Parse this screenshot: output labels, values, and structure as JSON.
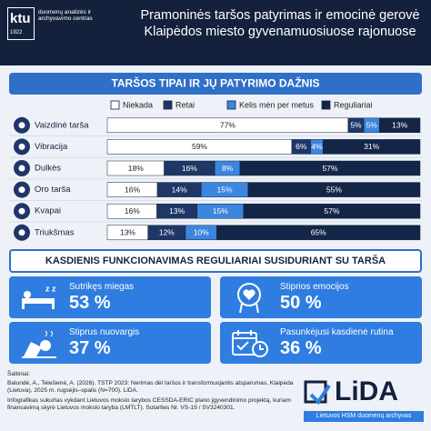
{
  "header": {
    "logo_text": "ktu",
    "logo_year": "1922",
    "logo_subtitle": "duomenų analizės ir archyvavimo centras",
    "title": "Pramoninės taršos patyrimas ir emocinė gerovė Klaipėdos miesto gyvenamuosiuose rajonuose"
  },
  "chart_data": {
    "type": "bar",
    "stacked": true,
    "orientation": "horizontal",
    "title": "TARŠOS TIPAI IR JŲ PATYRIMO DAŽNIS",
    "categories": [
      "Vaizdinė tarša",
      "Vibracija",
      "Dulkės",
      "Oro tarša",
      "Kvapai",
      "Triukšmas"
    ],
    "series": [
      {
        "name": "Niekada",
        "color": "#ffffff",
        "values": [
          77,
          59,
          18,
          16,
          16,
          13
        ],
        "value_labels": [
          "77%",
          "59%",
          "18%",
          "16%",
          "16%",
          "13%"
        ]
      },
      {
        "name": "Retai",
        "color": "#1f3766",
        "values": [
          5,
          6,
          16,
          14,
          13,
          12
        ],
        "value_labels": [
          "5%",
          "6%",
          "16%",
          "14%",
          "13%",
          "12%"
        ]
      },
      {
        "name": "Kelis mėn per metus",
        "color": "#3b86de",
        "values": [
          5,
          4,
          8,
          15,
          15,
          10
        ],
        "value_labels": [
          "5%",
          "4%",
          "8%",
          "15%",
          "15%",
          "10%"
        ]
      },
      {
        "name": "Reguliariai",
        "color": "#142647",
        "values": [
          13,
          31,
          57,
          55,
          57,
          65
        ],
        "value_labels": [
          "13%",
          "31%",
          "57%",
          "55%",
          "57%",
          "65%"
        ]
      }
    ],
    "legend": "top"
  },
  "section2": {
    "title": "KASDIENIS FUNKCIONAVIMAS REGULIARIAI SUSIDURIANT SU TARŠA",
    "cards": [
      {
        "label": "Sutrikęs miegas",
        "value": "53 %"
      },
      {
        "label": "Stiprios emocijos",
        "value": "50 %"
      },
      {
        "label": "Stiprus nuovargis",
        "value": "37 %"
      },
      {
        "label": "Pasunkėjusi kasdienė rutina",
        "value": "36 %"
      }
    ]
  },
  "footer": {
    "sources_title": "Šaltiniai:",
    "source": "Balundė, A., Telešienė, A. (2026). TSTP 2023: Nerimas dėl taršos ir transformuojantis atsparumas, Klaipėda (Lietuva), 2025 m. rugsėjis–spalis (N=700). LiDA.",
    "note": "Infografikas sukurtas vykdant Lietuvos mokslo tarybos CESSDA-ERIC plano įgyvendinimo projektą, kuriam finansavimą skyrė Lietuvos mokslo taryba (LMTLT). Sutarties Nr. VS-19 / SV3240301.",
    "logo": "LiDA",
    "logo_subtitle": "Lietuvos HSM duomenų archyvas"
  }
}
